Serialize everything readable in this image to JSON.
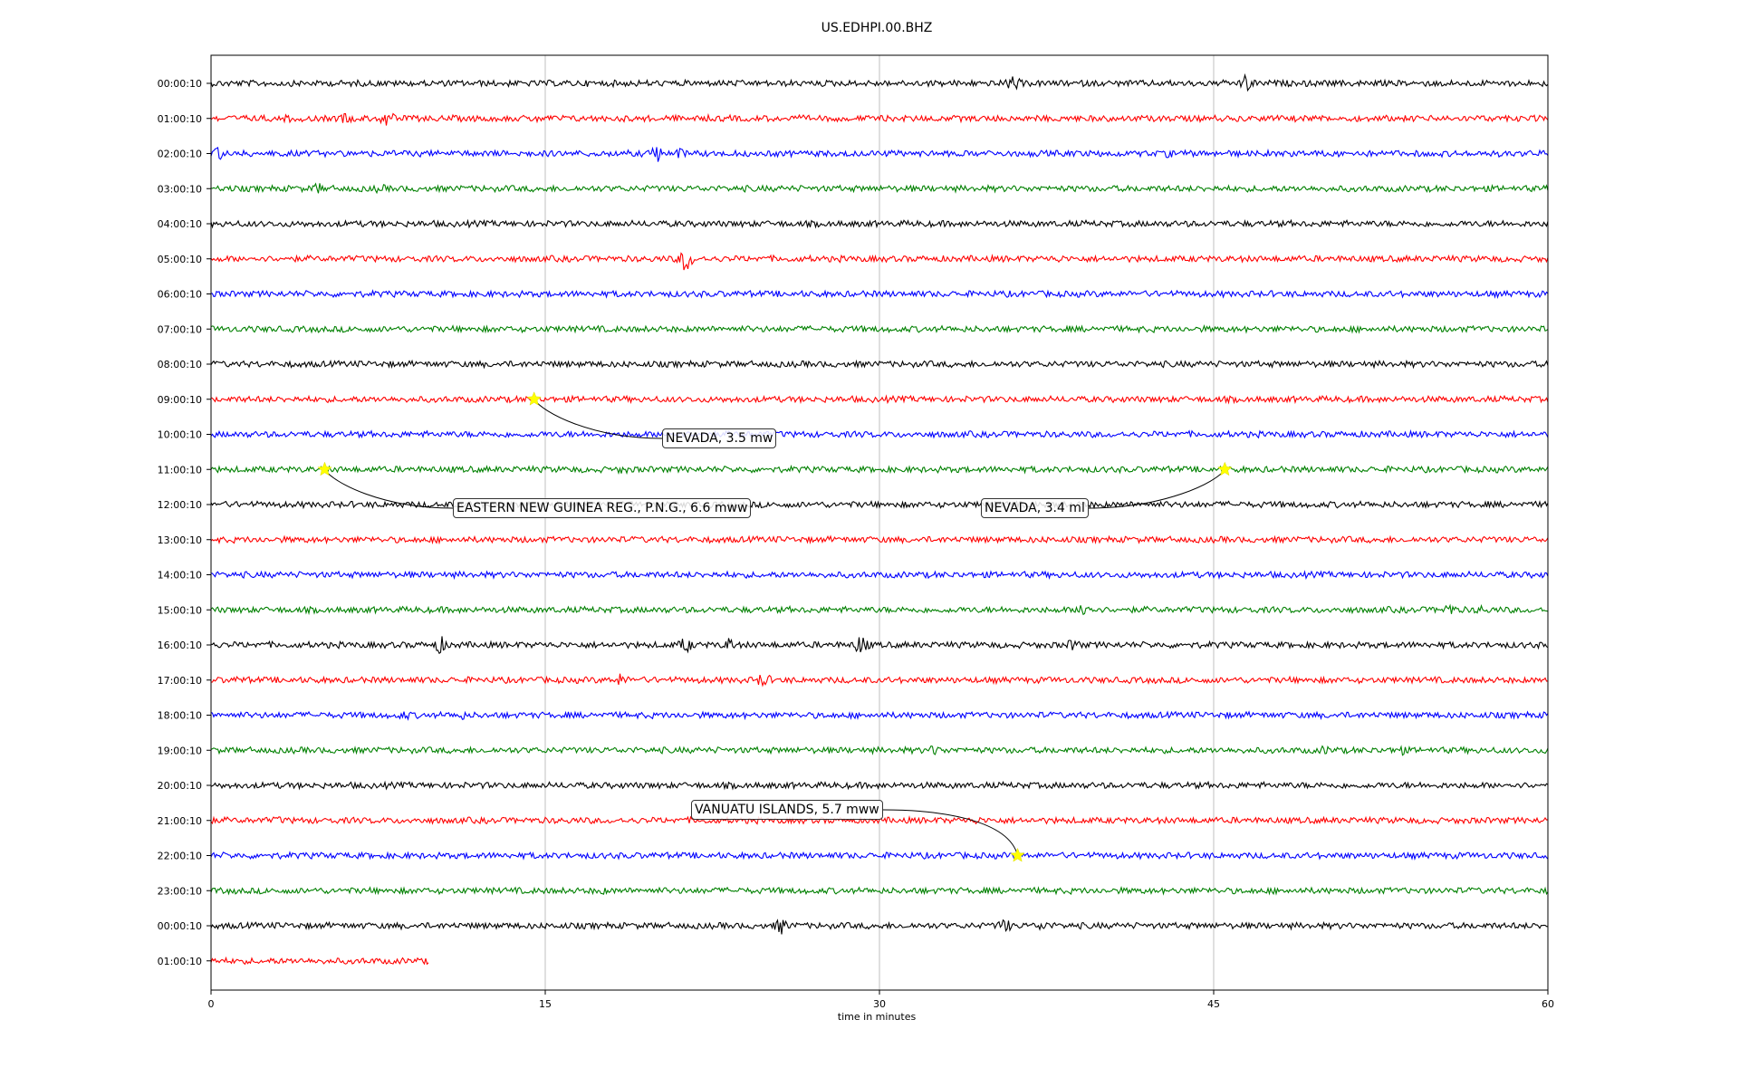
{
  "chart_data": {
    "type": "line",
    "title": "US.EDHPI.00.BHZ",
    "xlabel": "time in minutes",
    "ylabel": "",
    "xlim": [
      0,
      60
    ],
    "x_ticks": [
      0,
      15,
      30,
      45,
      60
    ],
    "x_tick_labels": [
      "0",
      "15",
      "30",
      "45",
      "60"
    ],
    "grid": "vertical at x ticks",
    "row_colors": [
      "#000000",
      "#ff0000",
      "#0000ff",
      "#008000"
    ],
    "rows": [
      {
        "label": "00:00:10",
        "end": 60,
        "bursts": [
          [
            36,
            8
          ],
          [
            46.5,
            9
          ]
        ]
      },
      {
        "label": "01:00:10",
        "end": 60,
        "bursts": [
          [
            3.5,
            3
          ],
          [
            6,
            5
          ],
          [
            7.9,
            9
          ],
          [
            14.6,
            3
          ]
        ]
      },
      {
        "label": "02:00:10",
        "end": 60,
        "bursts": [
          [
            0.3,
            7
          ],
          [
            20,
            10
          ],
          [
            21,
            5
          ],
          [
            43,
            3
          ]
        ]
      },
      {
        "label": "03:00:10",
        "end": 60,
        "bursts": [
          [
            4.8,
            5
          ],
          [
            7.6,
            4
          ]
        ]
      },
      {
        "label": "04:00:10",
        "end": 60,
        "bursts": []
      },
      {
        "label": "05:00:10",
        "end": 60,
        "bursts": [
          [
            21.3,
            14
          ],
          [
            38,
            3
          ]
        ]
      },
      {
        "label": "06:00:10",
        "end": 60,
        "bursts": []
      },
      {
        "label": "07:00:10",
        "end": 60,
        "bursts": []
      },
      {
        "label": "08:00:10",
        "end": 60,
        "bursts": []
      },
      {
        "label": "09:00:10",
        "end": 60,
        "bursts": []
      },
      {
        "label": "10:00:10",
        "end": 60,
        "bursts": []
      },
      {
        "label": "11:00:10",
        "end": 60,
        "bursts": [
          [
            18.5,
            4
          ]
        ]
      },
      {
        "label": "12:00:10",
        "end": 60,
        "bursts": []
      },
      {
        "label": "13:00:10",
        "end": 60,
        "bursts": []
      },
      {
        "label": "14:00:10",
        "end": 60,
        "bursts": []
      },
      {
        "label": "15:00:10",
        "end": 60,
        "bursts": [
          [
            39.2,
            10
          ],
          [
            55.6,
            6
          ],
          [
            57,
            4
          ]
        ]
      },
      {
        "label": "16:00:10",
        "end": 60,
        "bursts": [
          [
            10.3,
            9
          ],
          [
            21.3,
            8
          ],
          [
            23.3,
            7
          ],
          [
            29.2,
            11
          ],
          [
            38.7,
            6
          ]
        ]
      },
      {
        "label": "17:00:10",
        "end": 60,
        "bursts": [
          [
            1.3,
            3
          ],
          [
            18.4,
            6
          ],
          [
            24.8,
            8
          ]
        ]
      },
      {
        "label": "18:00:10",
        "end": 60,
        "bursts": [
          [
            8.7,
            4
          ],
          [
            11.2,
            4
          ]
        ]
      },
      {
        "label": "19:00:10",
        "end": 60,
        "bursts": [
          [
            32.5,
            5
          ],
          [
            50,
            4
          ],
          [
            53.3,
            6
          ]
        ]
      },
      {
        "label": "20:00:10",
        "end": 60,
        "bursts": []
      },
      {
        "label": "21:00:10",
        "end": 60,
        "bursts": [
          [
            3,
            3
          ],
          [
            34.3,
            3
          ]
        ]
      },
      {
        "label": "22:00:10",
        "end": 60,
        "bursts": []
      },
      {
        "label": "23:00:10",
        "end": 60,
        "bursts": [
          [
            17.5,
            3
          ]
        ]
      },
      {
        "label": "00:00:10",
        "end": 60,
        "bursts": [
          [
            25.6,
            8
          ],
          [
            35.6,
            7
          ],
          [
            37.3,
            5
          ]
        ]
      },
      {
        "label": "01:00:10",
        "end": 9.8,
        "bursts": []
      }
    ],
    "events": [
      {
        "label": "NEVADA, 3.5 mw",
        "row": 9,
        "x": 14.5
      },
      {
        "label": "EASTERN NEW GUINEA REG., P.N.G., 6.6 mww",
        "row": 11,
        "x": 5.1
      },
      {
        "label": "NEVADA, 3.4 ml",
        "row": 11,
        "x": 45.5
      },
      {
        "label": "VANUATU ISLANDS, 5.7 mww",
        "row": 22,
        "x": 36.2
      }
    ]
  }
}
